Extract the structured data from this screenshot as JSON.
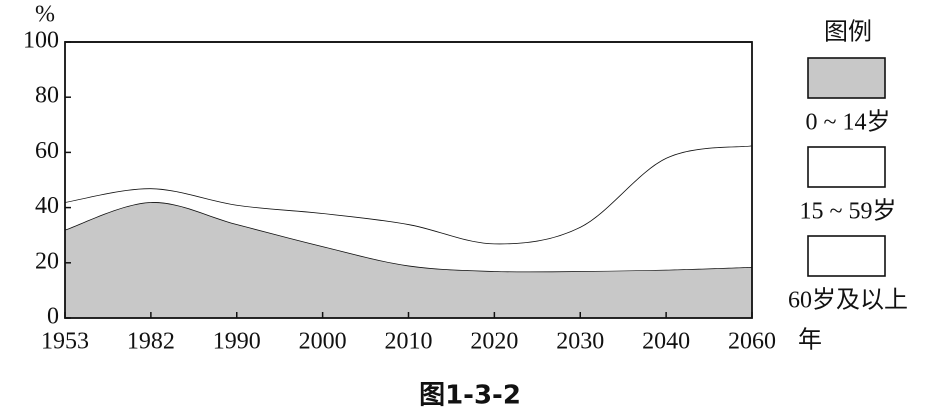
{
  "chart_data": {
    "type": "stacked_area",
    "title": "图1-3-2",
    "y_label": "%",
    "x_label": "年",
    "legend_title": "图例",
    "categories": [
      "1953",
      "1982",
      "1990",
      "2000",
      "2010",
      "2020",
      "2030",
      "2040",
      "2060"
    ],
    "series": [
      {
        "name": "0 ~ 14岁",
        "color": "#c8c8c8",
        "values": [
          32,
          42,
          34,
          26,
          19,
          17,
          17,
          17.5,
          18.5
        ]
      },
      {
        "name": "15 ~ 59岁",
        "color": "#ffffff",
        "values": [
          10,
          5,
          7,
          12,
          15,
          10,
          16,
          40.5,
          44
        ]
      },
      {
        "name": "60岁及以上",
        "color": "#ffffff",
        "values": [
          58,
          53,
          59,
          62,
          66,
          73,
          67,
          42,
          37.5
        ]
      }
    ],
    "ylim": [
      0,
      100
    ],
    "yticks": [
      0,
      20,
      40,
      60,
      80,
      100
    ]
  }
}
